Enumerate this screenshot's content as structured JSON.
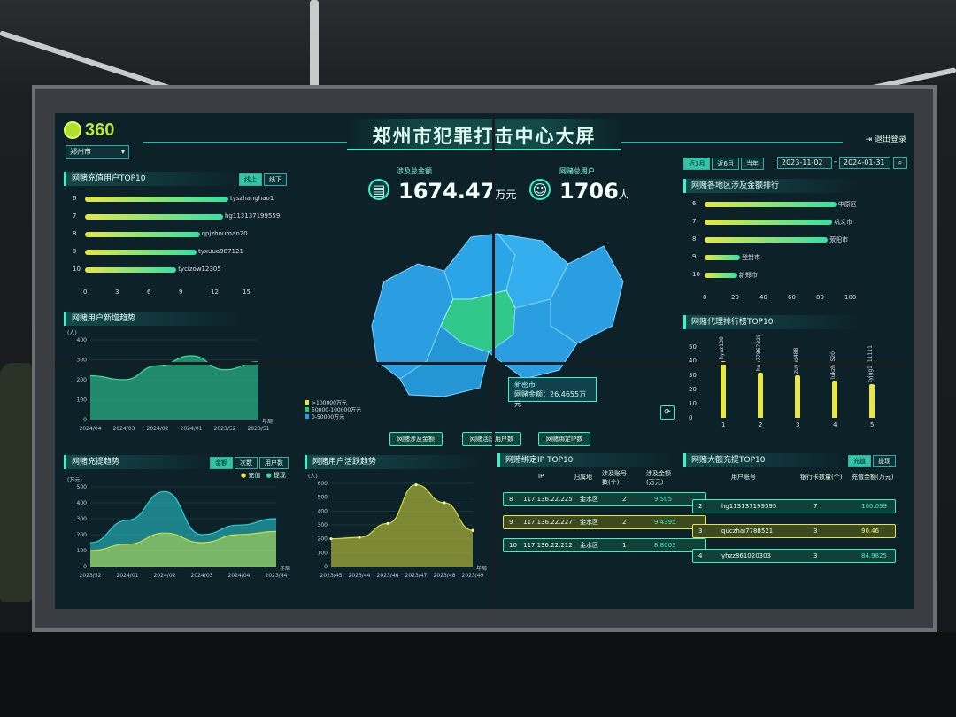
{
  "brand": {
    "logo_text": "360"
  },
  "header": {
    "title": "郑州市犯罪打击中心大屏",
    "logout": "退出登录",
    "city": "郑州市"
  },
  "filters": {
    "tabs": [
      "近1月",
      "近6月",
      "当年"
    ],
    "start_date": "2023-11-02",
    "end_date": "2024-01-31",
    "sep": "-"
  },
  "kpis": [
    {
      "label": "涉及总金额",
      "value": "1674.47",
      "unit": "万元"
    },
    {
      "label": "网赌总用户",
      "value": "1706",
      "unit": "人"
    }
  ],
  "top10_users": {
    "title": "网赌充值用户TOP10",
    "tabs": [
      "线上",
      "线下"
    ],
    "xunit": "(万元)",
    "rows": [
      {
        "rank": "6",
        "name": "tyszhanghao1",
        "value": 13.5
      },
      {
        "rank": "7",
        "name": "hg113137199559",
        "value": 13.0
      },
      {
        "rank": "8",
        "name": "qpjzhouman20",
        "value": 10.8
      },
      {
        "rank": "9",
        "name": "tyxuua987121",
        "value": 10.5
      },
      {
        "rank": "10",
        "name": "tyclzow12305",
        "value": 8.6
      }
    ],
    "xticks": [
      "0",
      "3",
      "6",
      "9",
      "12",
      "15"
    ]
  },
  "new_trend": {
    "title": "网赌用户新增趋势",
    "yunit": "(人)",
    "xunit": "年周",
    "yticks": [
      "400",
      "300",
      "200",
      "100",
      "0"
    ],
    "xticks": [
      "2024/04",
      "2024/03",
      "2024/02",
      "2024/01",
      "2023/52",
      "2023/51"
    ],
    "values": [
      220,
      200,
      270,
      320,
      250,
      290
    ]
  },
  "recharge_trend": {
    "title": "网赌充提趋势",
    "tabs": [
      "金额",
      "次数",
      "用户数"
    ],
    "legend": [
      "充值",
      "提现"
    ],
    "yunit": "(万元)",
    "xunit": "年周",
    "yticks": [
      "500",
      "400",
      "300",
      "200",
      "100",
      "0"
    ],
    "xticks": [
      "2023/52",
      "2024/01",
      "2024/02",
      "2024/03",
      "2024/04",
      "2023/44"
    ],
    "recharge": [
      150,
      290,
      470,
      200,
      260,
      300
    ],
    "withdraw": [
      100,
      140,
      210,
      150,
      200,
      220
    ]
  },
  "active_trend": {
    "title": "网赌用户活跃趋势",
    "yunit": "(人)",
    "xunit": "年周",
    "yticks": [
      "600",
      "500",
      "400",
      "300",
      "200",
      "100",
      "0"
    ],
    "xticks": [
      "2023/45",
      "2023/44",
      "2023/46",
      "2023/47",
      "2023/48",
      "2023/49"
    ],
    "values": [
      200,
      210,
      310,
      590,
      460,
      260
    ]
  },
  "map": {
    "legend": [
      ">100000万元",
      "50000-100000万元",
      "0-50000万元"
    ],
    "legend_colors": [
      "#e6e64a",
      "#35c76e",
      "#2a9ee0"
    ],
    "popup_title": "新密市",
    "popup_label": "网赌金额：",
    "popup_value": "26.4655万元",
    "buttons": [
      "网赌涉及金额",
      "网赌活跃用户数",
      "网赌绑定IP数"
    ]
  },
  "region_rank": {
    "title": "网赌各地区涉及金额排行",
    "rows": [
      {
        "rank": "6",
        "name": "中原区",
        "value": 93
      },
      {
        "rank": "7",
        "name": "巩义市",
        "value": 90
      },
      {
        "rank": "8",
        "name": "荥阳市",
        "value": 87
      },
      {
        "rank": "9",
        "name": "登封市",
        "value": 25
      },
      {
        "rank": "10",
        "name": "新郑市",
        "value": 23
      }
    ],
    "xticks": [
      "0",
      "20",
      "40",
      "60",
      "80",
      "100"
    ],
    "xunit": "(万元)"
  },
  "agent_rank": {
    "title": "网赌代理排行榜TOP10",
    "yticks": [
      "50",
      "40",
      "30",
      "20",
      "10",
      "0"
    ],
    "bars": [
      {
        "rank": "1",
        "name": "hyuz130",
        "value": 40
      },
      {
        "rank": "2",
        "name": "hua77867225",
        "value": 32
      },
      {
        "rank": "3",
        "name": "zuyao488",
        "value": 30
      },
      {
        "rank": "4",
        "name": "lukzhy520",
        "value": 26
      },
      {
        "rank": "5",
        "name": "tyjgg1111111",
        "value": 24
      }
    ]
  },
  "ip_top10": {
    "title": "网赌绑定IP TOP10",
    "headers": [
      "IP",
      "归属地",
      "涉及账号数(个)",
      "涉及金额(万元)"
    ],
    "rows": [
      {
        "rank": "8",
        "ip": "117.136.22.225",
        "loc": "金水区",
        "accounts": "2",
        "amount": "9.505"
      },
      {
        "rank": "9",
        "ip": "117.136.22.227",
        "loc": "金水区",
        "accounts": "2",
        "amount": "9.4395"
      },
      {
        "rank": "10",
        "ip": "117.136.22.212",
        "loc": "金水区",
        "accounts": "1",
        "amount": "8.8003"
      }
    ]
  },
  "big_top10": {
    "title": "网赌大额充提TOP10",
    "tabs": [
      "充值",
      "提现"
    ],
    "headers": [
      "用户账号",
      "银行卡数量(个)",
      "充值金额(万元)"
    ],
    "rows": [
      {
        "rank": "2",
        "user": "hg113137199595",
        "cards": "7",
        "amount": "100.099"
      },
      {
        "rank": "3",
        "user": "quczhai7788521",
        "cards": "3",
        "amount": "90.46"
      },
      {
        "rank": "4",
        "user": "yhzz861020303",
        "cards": "3",
        "amount": "84.9825"
      }
    ]
  },
  "colors": {
    "accent": "#3cf2c8",
    "yellow": "#e6e64a",
    "map_blue": "#2a9ee0"
  }
}
